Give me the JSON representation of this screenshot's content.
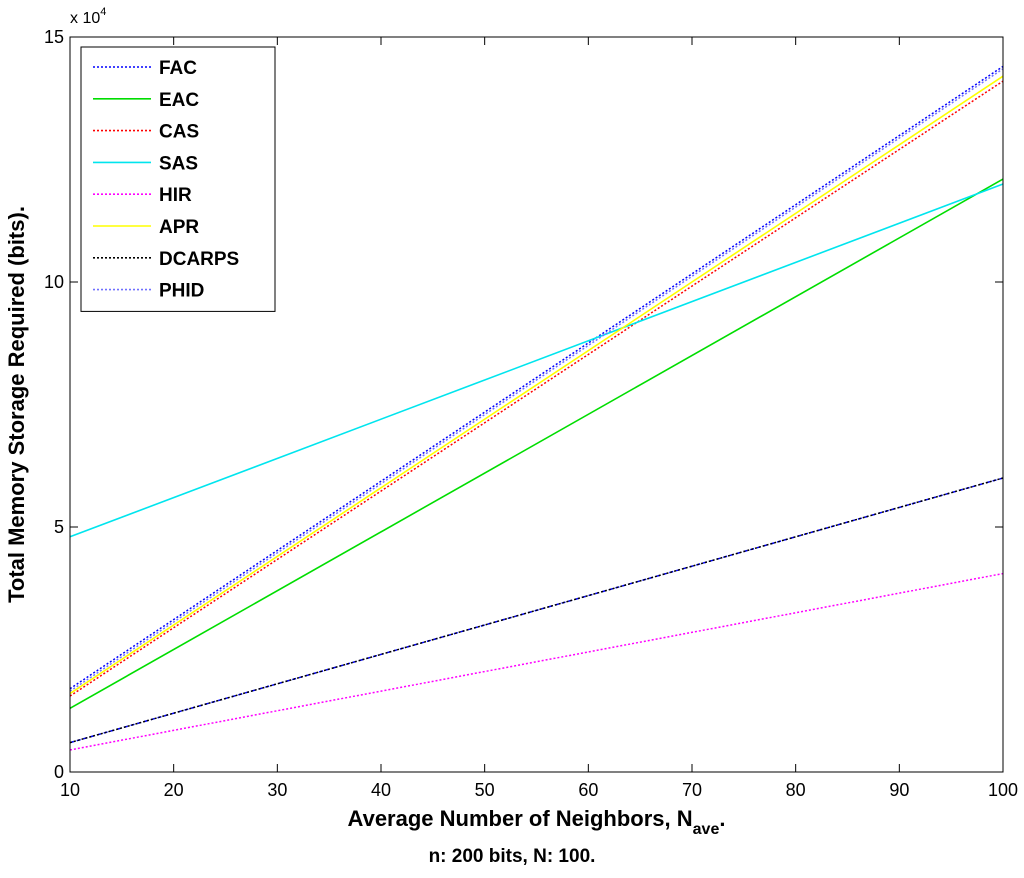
{
  "chart_data": {
    "type": "line",
    "xlabel": "Average Number of Neighbors, N",
    "xlabel_subscript": "ave",
    "xlabel_suffix": ".",
    "ylabel": "Total Memory Storage Required (bits).",
    "y_exponent_label": "x 10",
    "y_exponent_power": "4",
    "subtitle": "n: 200 bits, N: 100.",
    "xlim": [
      10,
      100
    ],
    "ylim": [
      0,
      15
    ],
    "xticks": [
      10,
      20,
      30,
      40,
      50,
      60,
      70,
      80,
      90,
      100
    ],
    "yticks": [
      0,
      5,
      10,
      15
    ],
    "grid": false,
    "legend_position": "top-left",
    "series": [
      {
        "name": "FAC",
        "color": "#0000ff",
        "style": "dotted",
        "x": [
          10,
          100
        ],
        "y": [
          1.7,
          14.4
        ]
      },
      {
        "name": "EAC",
        "color": "#00dd00",
        "style": "solid",
        "x": [
          10,
          100
        ],
        "y": [
          1.3,
          12.1
        ]
      },
      {
        "name": "CAS",
        "color": "#ff0000",
        "style": "dotted",
        "x": [
          10,
          100
        ],
        "y": [
          1.55,
          14.1
        ]
      },
      {
        "name": "SAS",
        "color": "#00e5ee",
        "style": "solid",
        "x": [
          10,
          100
        ],
        "y": [
          4.8,
          12.0
        ]
      },
      {
        "name": "HIR",
        "color": "#ff00ff",
        "style": "dotted",
        "x": [
          10,
          100
        ],
        "y": [
          0.45,
          4.05
        ]
      },
      {
        "name": "APR",
        "color": "#ffff00",
        "style": "solid",
        "x": [
          10,
          100
        ],
        "y": [
          1.6,
          14.2
        ]
      },
      {
        "name": "DCARPS",
        "color": "#000000",
        "style": "dotted",
        "x": [
          10,
          100
        ],
        "y": [
          0.6,
          6.0
        ]
      },
      {
        "name": "PHID",
        "color": "#7070ff",
        "style": "dotted",
        "x": [
          10,
          100
        ],
        "y": [
          1.65,
          14.35
        ]
      }
    ],
    "extra_lines": [
      {
        "color": "#0000ff",
        "style": "dashed",
        "x": [
          10,
          100
        ],
        "y": [
          0.6,
          6.0
        ]
      }
    ]
  }
}
